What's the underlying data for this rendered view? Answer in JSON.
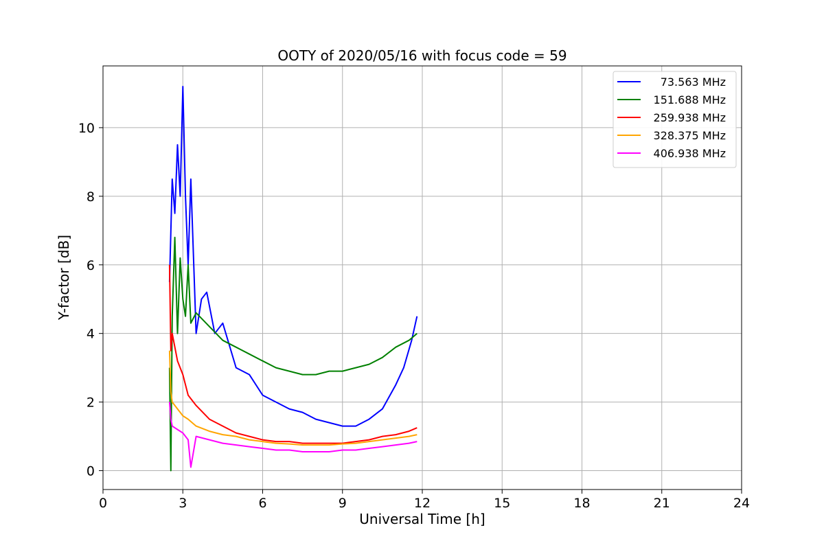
{
  "chart_data": {
    "type": "line",
    "title": "OOTY of 2020/05/16 with focus code = 59",
    "xlabel": "Universal Time [h]",
    "ylabel": "Y-factor [dB]",
    "xlim": [
      0,
      24
    ],
    "ylim": [
      -0.55,
      11.8
    ],
    "xticks": [
      0,
      3,
      6,
      9,
      12,
      15,
      18,
      21,
      24
    ],
    "yticks": [
      0,
      2,
      4,
      6,
      8,
      10
    ],
    "grid": true,
    "legend_position": "top-right",
    "series": [
      {
        "name": "73.563 MHz",
        "color": "#0000ff",
        "x": [
          2.5,
          2.6,
          2.7,
          2.8,
          2.9,
          3.0,
          3.1,
          3.2,
          3.3,
          3.5,
          3.7,
          3.9,
          4.2,
          4.5,
          5.0,
          5.5,
          6.0,
          6.5,
          7.0,
          7.5,
          8.0,
          8.5,
          9.0,
          9.5,
          10.0,
          10.5,
          11.0,
          11.3,
          11.6,
          11.8
        ],
        "y": [
          5.5,
          8.5,
          7.5,
          9.5,
          8.0,
          11.2,
          8.0,
          6.0,
          8.5,
          4.0,
          5.0,
          5.2,
          4.0,
          4.3,
          3.0,
          2.8,
          2.2,
          2.0,
          1.8,
          1.7,
          1.5,
          1.4,
          1.3,
          1.3,
          1.5,
          1.8,
          2.5,
          3.0,
          3.8,
          4.5
        ]
      },
      {
        "name": "151.688 MHz",
        "color": "#008000",
        "x": [
          2.5,
          2.55,
          2.6,
          2.7,
          2.8,
          2.9,
          3.0,
          3.1,
          3.2,
          3.3,
          3.5,
          4.0,
          4.5,
          5.0,
          5.5,
          6.0,
          6.5,
          7.0,
          7.5,
          8.0,
          8.5,
          9.0,
          9.5,
          10.0,
          10.5,
          11.0,
          11.5,
          11.8
        ],
        "y": [
          3.0,
          0.0,
          4.5,
          6.8,
          4.0,
          6.2,
          5.0,
          4.5,
          6.0,
          4.3,
          4.6,
          4.2,
          3.8,
          3.6,
          3.4,
          3.2,
          3.0,
          2.9,
          2.8,
          2.8,
          2.9,
          2.9,
          3.0,
          3.1,
          3.3,
          3.6,
          3.8,
          4.0
        ]
      },
      {
        "name": "259.938 MHz",
        "color": "#ff0000",
        "x": [
          2.5,
          2.55,
          2.6,
          2.8,
          3.0,
          3.2,
          3.5,
          4.0,
          4.5,
          5.0,
          5.5,
          6.0,
          6.5,
          7.0,
          7.5,
          8.0,
          8.5,
          9.0,
          9.5,
          10.0,
          10.5,
          11.0,
          11.5,
          11.8
        ],
        "y": [
          6.0,
          3.5,
          4.0,
          3.2,
          2.8,
          2.2,
          1.9,
          1.5,
          1.3,
          1.1,
          1.0,
          0.9,
          0.85,
          0.85,
          0.8,
          0.8,
          0.8,
          0.8,
          0.85,
          0.9,
          1.0,
          1.05,
          1.15,
          1.25
        ]
      },
      {
        "name": "328.375 MHz",
        "color": "#ffa500",
        "x": [
          2.5,
          2.55,
          2.6,
          2.8,
          3.0,
          3.2,
          3.5,
          4.0,
          4.5,
          5.0,
          5.5,
          6.0,
          6.5,
          7.0,
          7.5,
          8.0,
          8.5,
          9.0,
          9.5,
          10.0,
          10.5,
          11.0,
          11.5,
          11.8
        ],
        "y": [
          3.5,
          2.3,
          2.0,
          1.8,
          1.6,
          1.5,
          1.3,
          1.15,
          1.05,
          1.0,
          0.9,
          0.85,
          0.8,
          0.78,
          0.75,
          0.75,
          0.75,
          0.78,
          0.8,
          0.85,
          0.9,
          0.95,
          1.0,
          1.05
        ]
      },
      {
        "name": "406.938 MHz",
        "color": "#ff00ff",
        "x": [
          2.5,
          2.55,
          2.6,
          2.8,
          3.0,
          3.2,
          3.3,
          3.5,
          4.0,
          4.5,
          5.0,
          5.5,
          6.0,
          6.5,
          7.0,
          7.5,
          8.0,
          8.5,
          9.0,
          9.5,
          10.0,
          10.5,
          11.0,
          11.5,
          11.8
        ],
        "y": [
          2.0,
          1.5,
          1.3,
          1.2,
          1.1,
          0.9,
          0.1,
          1.0,
          0.9,
          0.8,
          0.75,
          0.7,
          0.65,
          0.6,
          0.6,
          0.55,
          0.55,
          0.55,
          0.6,
          0.6,
          0.65,
          0.7,
          0.75,
          0.8,
          0.85
        ]
      }
    ]
  }
}
